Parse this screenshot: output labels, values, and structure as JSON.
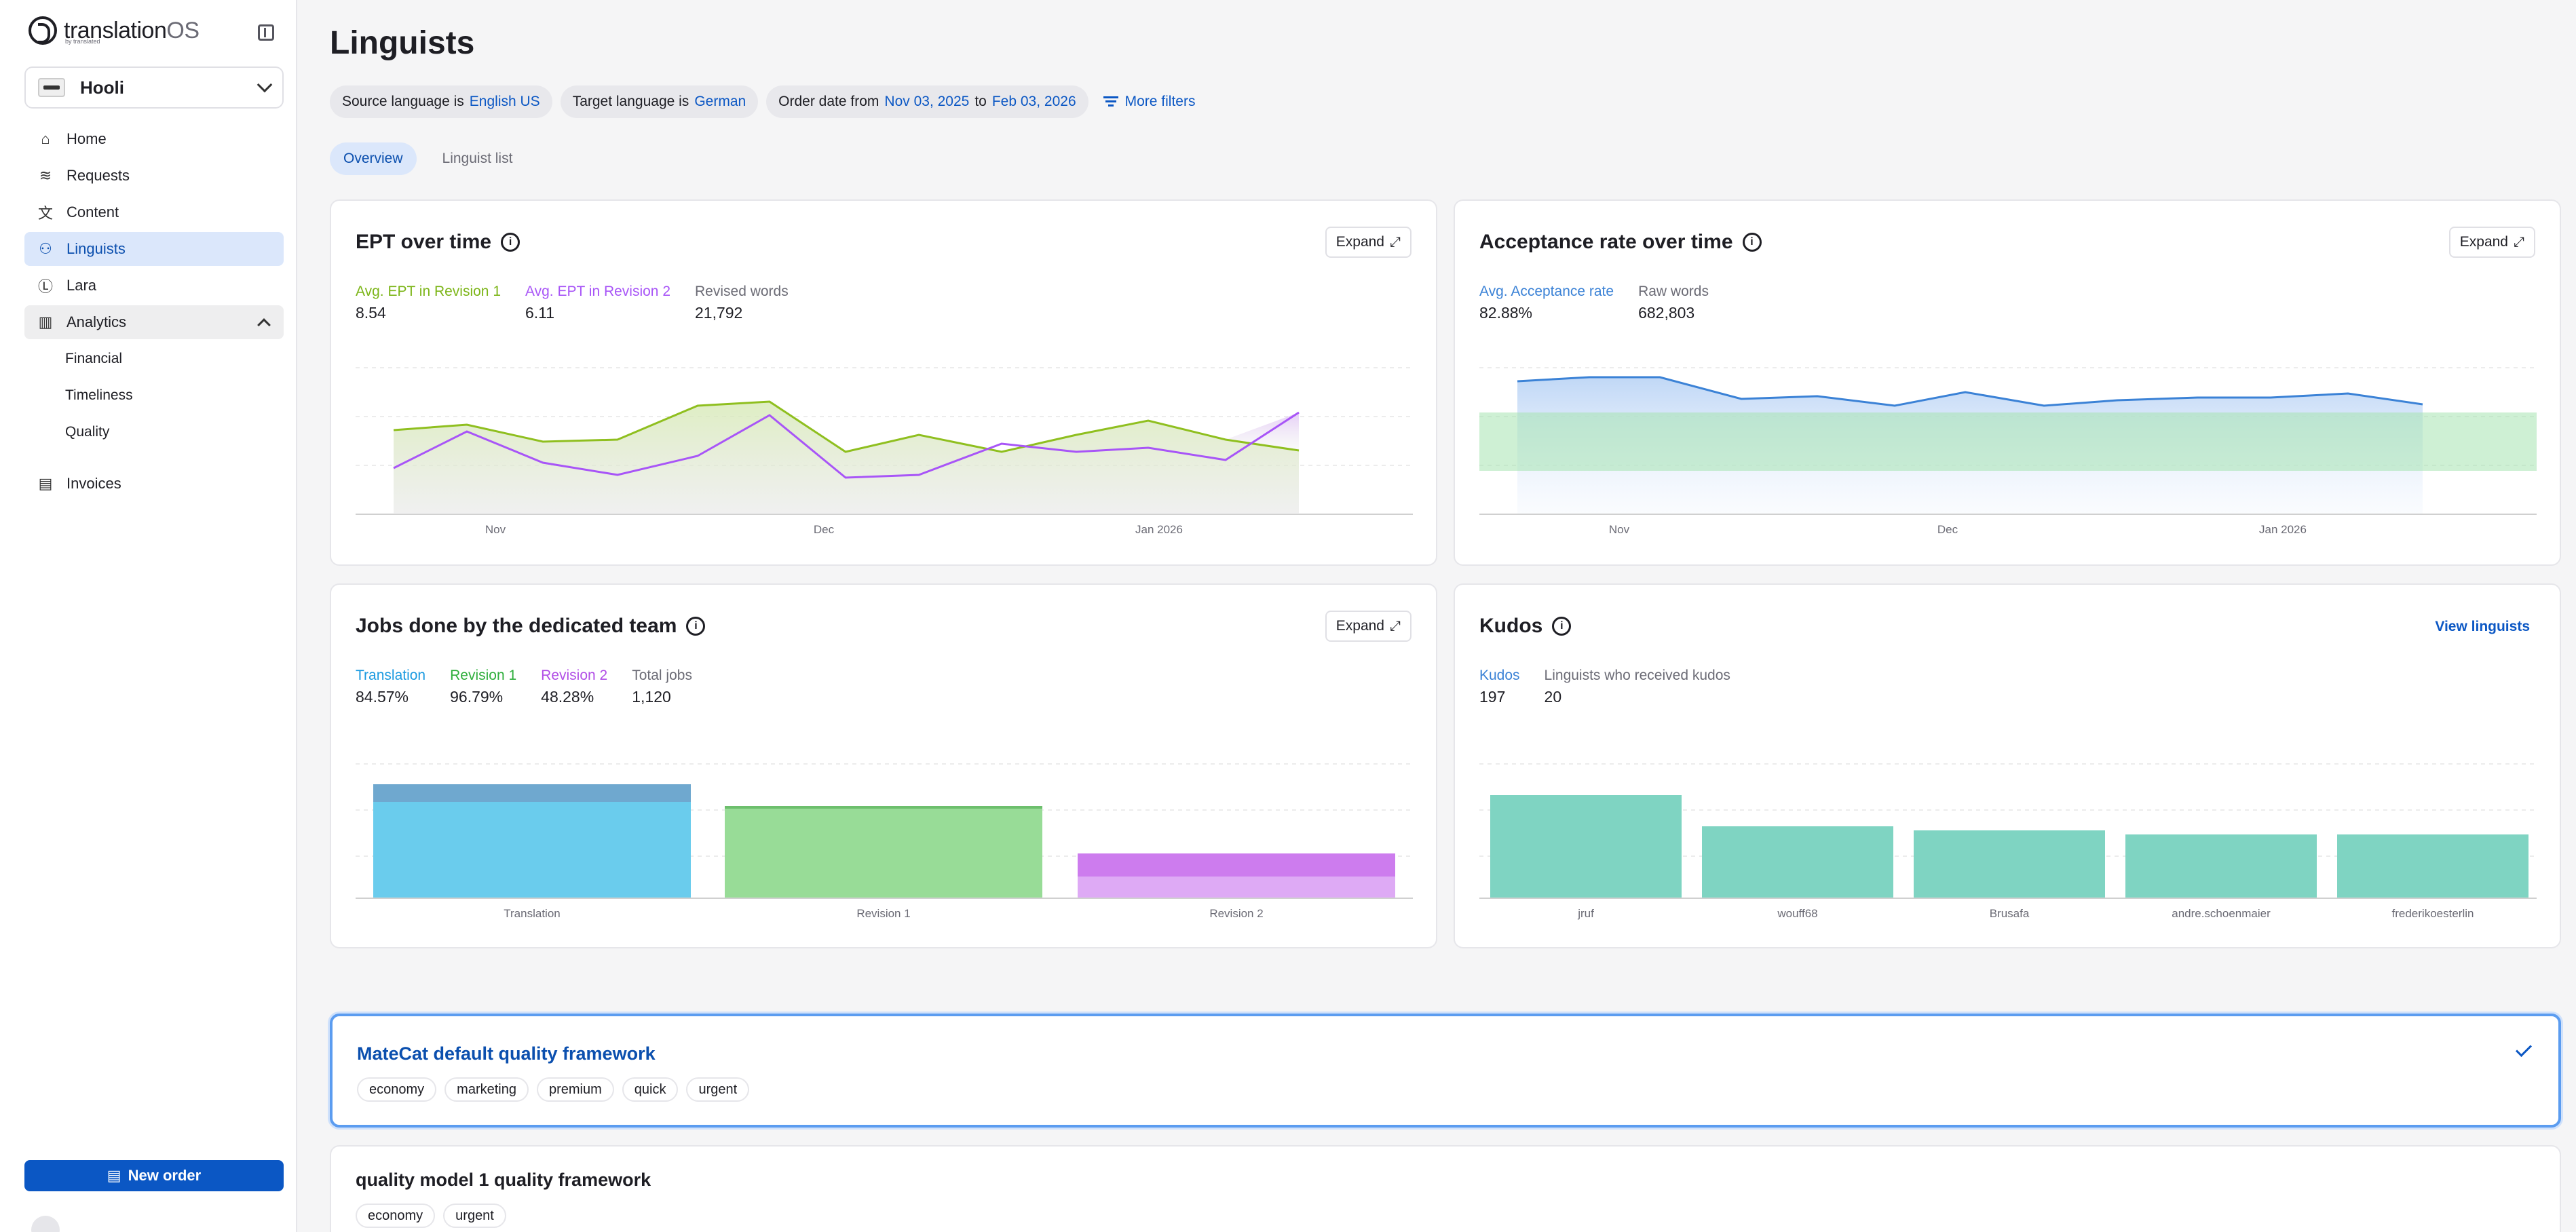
{
  "app": {
    "logo_main": "translation",
    "logo_os": "OS",
    "logo_sub": "by translated"
  },
  "org": {
    "name": "Hooli"
  },
  "nav": {
    "home": "Home",
    "requests": "Requests",
    "content": "Content",
    "linguists": "Linguists",
    "lara": "Lara",
    "analytics": "Analytics",
    "financial": "Financial",
    "timeliness": "Timeliness",
    "quality": "Quality",
    "invoices": "Invoices"
  },
  "new_order": "New order",
  "page_title": "Linguists",
  "filters": {
    "source_label": "Source language is",
    "source_value": "English US",
    "target_label": "Target language is",
    "target_value": "German",
    "date_label": "Order date from",
    "date_from": "Nov 03, 2025",
    "date_to_word": "to",
    "date_to": "Feb 03, 2026",
    "more": "More filters"
  },
  "tabs": {
    "overview": "Overview",
    "list": "Linguist list"
  },
  "expand_label": "Expand",
  "ept": {
    "title": "EPT over time",
    "stats": [
      {
        "label": "Avg. EPT in Revision 1",
        "value": "8.54",
        "color": "#7cb518"
      },
      {
        "label": "Avg. EPT in Revision 2",
        "value": "6.11",
        "color": "#a855f7"
      },
      {
        "label": "Revised words",
        "value": "21,792",
        "color": "#6b6b75"
      }
    ],
    "x_ticks": [
      "Nov",
      "Dec",
      "Jan 2026"
    ]
  },
  "acceptance": {
    "title": "Acceptance rate over time",
    "stats": [
      {
        "label": "Avg. Acceptance rate",
        "value": "82.88%",
        "color": "#3b82d6"
      },
      {
        "label": "Raw words",
        "value": "682,803",
        "color": "#6b6b75"
      }
    ],
    "x_ticks": [
      "Nov",
      "Dec",
      "Jan 2026"
    ]
  },
  "jobs": {
    "title": "Jobs done by the dedicated team",
    "stats": [
      {
        "label": "Translation",
        "value": "84.57%",
        "color": "#1a9ae0"
      },
      {
        "label": "Revision 1",
        "value": "96.79%",
        "color": "#2fae3c"
      },
      {
        "label": "Revision 2",
        "value": "48.28%",
        "color": "#b14ee6"
      },
      {
        "label": "Total jobs",
        "value": "1,120",
        "color": "#6b6b75"
      }
    ],
    "categories": [
      "Translation",
      "Revision 1",
      "Revision 2"
    ]
  },
  "kudos": {
    "title": "Kudos",
    "link": "View linguists",
    "stats": [
      {
        "label": "Kudos",
        "value": "197",
        "color": "#3b82d6"
      },
      {
        "label": "Linguists who received kudos",
        "value": "20",
        "color": "#6b6b75"
      }
    ],
    "categories": [
      "jruf",
      "wouff68",
      "Brusafa",
      "andre.schoenmaier",
      "frederikoesterlin"
    ]
  },
  "frameworks": [
    {
      "name": "MateCat default quality framework",
      "tags": [
        "economy",
        "marketing",
        "premium",
        "quick",
        "urgent"
      ]
    },
    {
      "name": "quality model 1 quality framework",
      "tags": [
        "economy",
        "urgent"
      ]
    }
  ]
}
